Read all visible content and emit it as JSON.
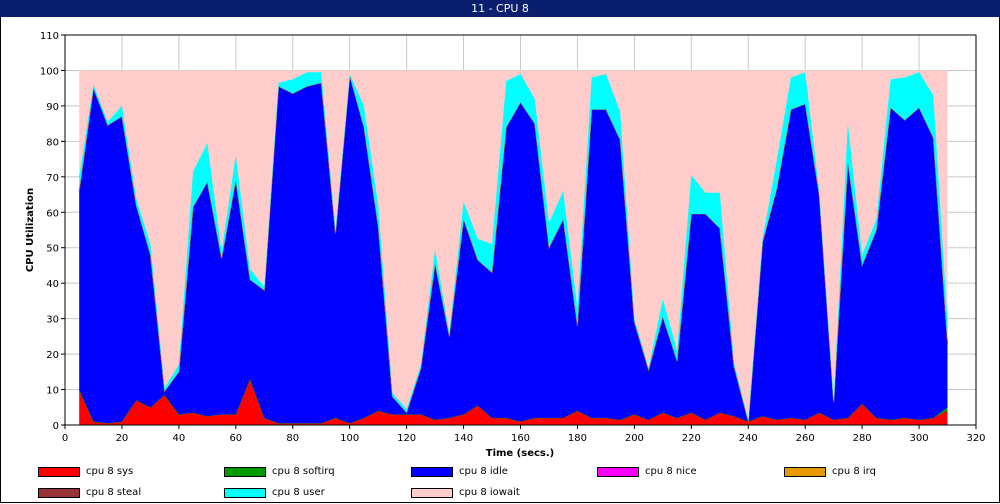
{
  "window": {
    "title": "11 - CPU 8"
  },
  "chart_data": {
    "type": "area",
    "stacked": true,
    "title": "11 - CPU 8",
    "xlabel": "Time (secs.)",
    "ylabel": "CPU Utilization",
    "xlim": [
      0,
      320
    ],
    "ylim": [
      0,
      110
    ],
    "xticks": [
      0,
      20,
      40,
      60,
      80,
      100,
      120,
      140,
      160,
      180,
      200,
      220,
      240,
      260,
      280,
      300,
      320
    ],
    "yticks": [
      0,
      10,
      20,
      30,
      40,
      50,
      60,
      70,
      80,
      90,
      100,
      110
    ],
    "grid": true,
    "legend_position": "bottom",
    "x": [
      5,
      10,
      15,
      20,
      25,
      30,
      35,
      40,
      45,
      50,
      55,
      60,
      65,
      70,
      75,
      80,
      85,
      90,
      95,
      100,
      105,
      110,
      115,
      120,
      125,
      130,
      135,
      140,
      145,
      150,
      155,
      160,
      165,
      170,
      175,
      180,
      185,
      190,
      195,
      200,
      205,
      210,
      215,
      220,
      225,
      230,
      235,
      240,
      245,
      250,
      255,
      260,
      265,
      270,
      275,
      280,
      285,
      290,
      295,
      300,
      305,
      310
    ],
    "series": [
      {
        "name": "cpu 8 sys",
        "color": "#ff0000",
        "values": [
          10,
          1,
          0.5,
          1,
          7,
          5,
          8.5,
          3,
          3.5,
          2.5,
          3,
          3,
          13,
          2,
          0.5,
          0.5,
          0.5,
          0.5,
          2,
          0.5,
          2,
          4,
          3,
          3,
          3,
          1.5,
          2,
          3,
          5.5,
          2,
          2,
          1,
          2,
          2,
          2,
          4,
          2,
          2,
          1.5,
          3,
          1.5,
          3.5,
          2,
          3.5,
          1.5,
          3.5,
          2.5,
          1,
          2.5,
          1.5,
          2,
          1.5,
          3.5,
          1.5,
          2,
          6,
          2,
          1.5,
          2,
          1.5,
          2,
          4
        ]
      },
      {
        "name": "cpu 8 softirq",
        "color": "#009900",
        "values": [
          0,
          0,
          0,
          0,
          0,
          0,
          0,
          0,
          0,
          0,
          0,
          0,
          0,
          0,
          0,
          0,
          0,
          0,
          0,
          0,
          0,
          0,
          0,
          0,
          0,
          0,
          0,
          0,
          0,
          0,
          0,
          0,
          0,
          0,
          0,
          0,
          0,
          0,
          0,
          0,
          0,
          0,
          0,
          0,
          0,
          0,
          0,
          0,
          0,
          0,
          0,
          0,
          0,
          0,
          0,
          0,
          0,
          0,
          0,
          0,
          0,
          1
        ]
      },
      {
        "name": "cpu 8 idle",
        "color": "#0000ff",
        "values": [
          56,
          94,
          84,
          86,
          55,
          43,
          1,
          12,
          58,
          66,
          44,
          66,
          28,
          36,
          95,
          93,
          95,
          96,
          52,
          98,
          82,
          52,
          5,
          0.5,
          13,
          44,
          23,
          55,
          41,
          41,
          82,
          90,
          83,
          48,
          56,
          24,
          87,
          87,
          79,
          26,
          14,
          27,
          16,
          56,
          58,
          52,
          14,
          0,
          49,
          65,
          87,
          89,
          61,
          5,
          72,
          39,
          53,
          88,
          84,
          88,
          79,
          18
        ]
      },
      {
        "name": "cpu 8 nice",
        "color": "#ff00ff",
        "values": [
          0,
          0,
          0,
          0,
          0,
          0,
          0,
          0,
          0,
          0,
          0,
          0,
          0,
          0,
          0,
          0,
          0,
          0,
          0,
          0,
          0,
          0,
          0,
          0,
          0,
          0,
          0,
          0,
          0,
          0,
          0,
          0,
          0,
          0,
          0,
          0,
          0,
          0,
          0,
          0,
          0,
          0,
          0,
          0,
          0,
          0,
          0,
          0,
          0,
          0,
          0,
          0,
          0,
          0,
          0,
          0,
          0,
          0,
          0,
          0,
          0,
          0
        ]
      },
      {
        "name": "cpu 8 irq",
        "color": "#e69900",
        "values": [
          0,
          0,
          0,
          0,
          0,
          0,
          0,
          0,
          0,
          0,
          0,
          0,
          0,
          0,
          0,
          0,
          0,
          0,
          0,
          0,
          0,
          0,
          0,
          0,
          0,
          0,
          0,
          0,
          0,
          0,
          0,
          0,
          0,
          0,
          0,
          0,
          0,
          0,
          0,
          0,
          0,
          0,
          0,
          0,
          0,
          0,
          0,
          0,
          0,
          0,
          0,
          0,
          0,
          0,
          0,
          0,
          0,
          0,
          0,
          0,
          0,
          0
        ]
      },
      {
        "name": "cpu 8 steal",
        "color": "#993333",
        "values": [
          0,
          0,
          0,
          0,
          0,
          0,
          0,
          0,
          0,
          0,
          0,
          0,
          0,
          0,
          0,
          0,
          0,
          0,
          0,
          0,
          0,
          0,
          0,
          0,
          0,
          0,
          0,
          0,
          0,
          0,
          0,
          0,
          0,
          0,
          0,
          0,
          0,
          0,
          0,
          0,
          0,
          0,
          0,
          0,
          0,
          0,
          0,
          0,
          0,
          0,
          0,
          0,
          0,
          0,
          0,
          0,
          0,
          0,
          0,
          0,
          0,
          0
        ]
      },
      {
        "name": "cpu 8 user",
        "color": "#00ffff",
        "values": [
          4,
          1,
          1,
          3,
          2,
          3,
          1,
          2,
          10,
          11,
          2,
          7,
          3,
          1,
          1,
          4,
          4,
          3,
          1,
          0.5,
          6,
          6,
          1,
          1,
          1,
          4,
          1,
          5,
          6,
          8,
          13,
          8,
          7,
          7,
          8,
          5,
          9,
          10,
          8,
          1,
          0.5,
          5,
          3,
          11,
          6,
          10,
          1,
          0.5,
          1,
          8,
          9,
          9,
          1,
          0.5,
          11,
          3,
          3,
          8,
          12,
          10,
          12,
          6
        ]
      },
      {
        "name": "cpu 8 iowait",
        "color": "#ffcccc",
        "values": [
          30,
          4,
          14.5,
          10,
          36,
          49,
          89.5,
          83,
          28.5,
          20.5,
          51,
          24,
          56,
          61,
          3.5,
          2.5,
          0.5,
          0.5,
          45,
          1,
          10,
          38,
          91,
          95.5,
          83,
          50.5,
          74,
          37,
          47.5,
          49,
          3,
          1,
          8,
          43,
          34,
          67,
          2,
          1,
          11.5,
          70,
          84,
          64.5,
          79,
          29.5,
          34.5,
          34.5,
          82.5,
          98.5,
          47.5,
          25.5,
          2,
          0.5,
          34.5,
          93,
          15,
          52,
          42,
          2.5,
          2,
          0.5,
          7,
          71
        ]
      }
    ]
  }
}
